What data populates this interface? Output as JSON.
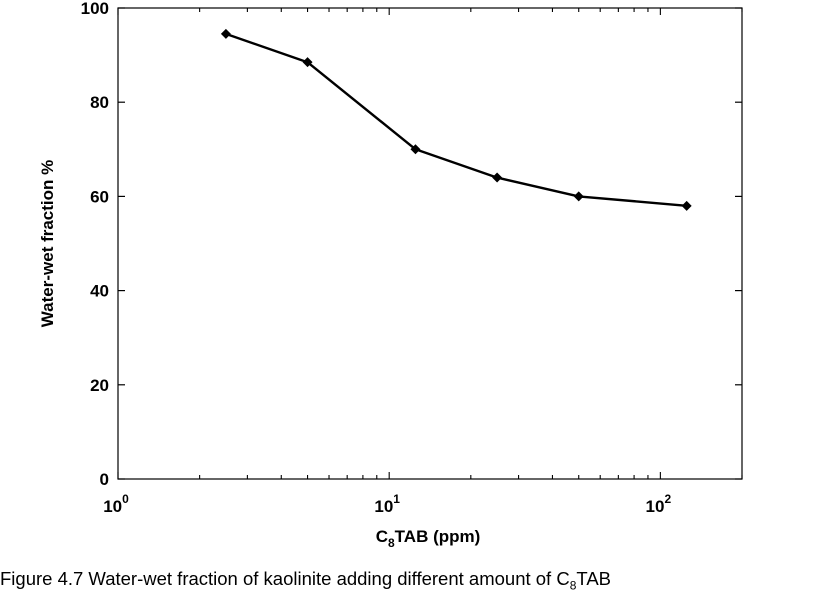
{
  "chart_data": {
    "type": "line",
    "xscale": "log",
    "xlim": [
      1,
      200
    ],
    "ylim": [
      0,
      100
    ],
    "x_tick_values": [
      1,
      10,
      100
    ],
    "x_tick_labels": [
      {
        "base": "10",
        "exp": "0"
      },
      {
        "base": "10",
        "exp": "1"
      },
      {
        "base": "10",
        "exp": "2"
      }
    ],
    "y_ticks": [
      0,
      20,
      40,
      60,
      80,
      100
    ],
    "ylabel": "Water-wet fraction %",
    "xlabel": {
      "prefix": "C",
      "sub": "8",
      "suffix": "TAB (ppm)"
    },
    "grid": false,
    "series": [
      {
        "x": [
          2.5,
          5,
          12.5,
          25,
          50,
          125
        ],
        "y": [
          94.5,
          88.5,
          70,
          64,
          60,
          58
        ],
        "marker": "diamond",
        "color": "#000000"
      }
    ]
  },
  "caption": {
    "text": "Figure 4.7 Water-wet fraction of kaolinite adding different amount of C",
    "sub": "8",
    "suffix": "TAB"
  }
}
